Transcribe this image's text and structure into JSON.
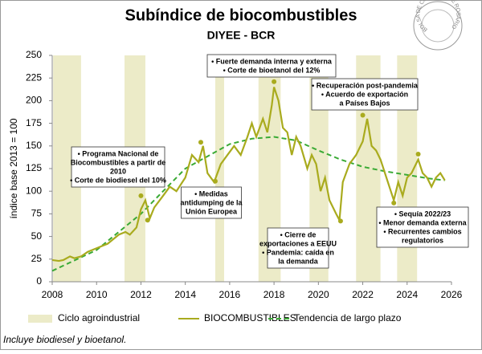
{
  "chart_data": {
    "type": "line",
    "title": "Subíndice de biocombustibles",
    "subtitle": "DIYEE - BCR",
    "y_label": "índice base 2013 = 100",
    "footnote": "Incluye biodiesel y bioetanol.",
    "logo_text": "BOLSA DE COMERCIO DE ROSARIO",
    "xlim": [
      2008,
      2026
    ],
    "xticks": [
      2008,
      2010,
      2012,
      2014,
      2016,
      2018,
      2020,
      2022,
      2024,
      2026
    ],
    "ylim": [
      0,
      250
    ],
    "yticks": [
      0,
      25,
      50,
      75,
      100,
      125,
      150,
      175,
      200,
      225,
      250
    ],
    "bands": {
      "name": "Ciclo agroindustrial",
      "color": "#ecebc8",
      "ranges": [
        [
          2008.04,
          2009.3
        ],
        [
          2011.26,
          2012.2
        ],
        [
          2015.35,
          2015.75
        ],
        [
          2017.3,
          2018.3
        ],
        [
          2019.6,
          2020.45
        ],
        [
          2021.7,
          2022.8
        ],
        [
          2023.55,
          2024.45
        ]
      ]
    },
    "series": [
      {
        "name": "BIOCOMBUSTIBLES",
        "color": "#a9ab1e",
        "style": "solid",
        "x": [
          2008.0,
          2008.3,
          2008.5,
          2008.8,
          2009.0,
          2009.3,
          2009.6,
          2010.0,
          2010.5,
          2010.8,
          2011.0,
          2011.3,
          2011.5,
          2011.8,
          2012.0,
          2012.2,
          2012.4,
          2012.6,
          2013.0,
          2013.3,
          2013.6,
          2014.0,
          2014.3,
          2014.6,
          2014.8,
          2015.0,
          2015.3,
          2015.6,
          2015.9,
          2016.2,
          2016.5,
          2016.8,
          2017.0,
          2017.2,
          2017.5,
          2017.7,
          2017.9,
          2018.0,
          2018.2,
          2018.4,
          2018.6,
          2018.8,
          2019.0,
          2019.2,
          2019.5,
          2019.7,
          2019.9,
          2020.1,
          2020.3,
          2020.5,
          2020.8,
          2020.95,
          2021.1,
          2021.4,
          2021.7,
          2022.0,
          2022.2,
          2022.4,
          2022.6,
          2022.8,
          2023.0,
          2023.2,
          2023.4,
          2023.6,
          2023.8,
          2024.0,
          2024.2,
          2024.5,
          2024.7,
          2024.9,
          2025.1,
          2025.3,
          2025.5,
          2025.7
        ],
        "values": [
          24,
          23,
          24,
          28,
          26,
          28,
          33,
          37,
          42,
          48,
          52,
          55,
          52,
          60,
          80,
          90,
          70,
          82,
          95,
          105,
          100,
          115,
          140,
          132,
          150,
          120,
          110,
          130,
          140,
          150,
          140,
          160,
          175,
          160,
          180,
          165,
          195,
          215,
          200,
          170,
          165,
          140,
          160,
          150,
          125,
          140,
          130,
          100,
          115,
          90,
          75,
          68,
          110,
          130,
          140,
          155,
          180,
          150,
          145,
          135,
          120,
          105,
          90,
          110,
          95,
          115,
          120,
          135,
          120,
          115,
          105,
          115,
          120,
          112
        ]
      },
      {
        "name": "Tendencia de largo plazo",
        "color": "#3aaa35",
        "style": "dashed",
        "x": [
          2008,
          2010,
          2012,
          2014,
          2016,
          2017,
          2018,
          2019,
          2020,
          2021,
          2022,
          2023,
          2024,
          2025,
          2025.7
        ],
        "values": [
          12,
          35,
          75,
          125,
          152,
          158,
          160,
          156,
          145,
          135,
          127,
          122,
          118,
          114,
          112
        ]
      }
    ],
    "annotations": [
      {
        "lines": [
          "• Programa Nacional de",
          "Biocombustibles a partir de",
          "2010",
          "• Corte de biodiesel del 10%"
        ],
        "points": [
          [
            2012.0,
            95
          ],
          [
            2012.3,
            68
          ]
        ]
      },
      {
        "lines": [
          "• Medidas",
          "antidumping de la",
          "Unión Europea"
        ],
        "points": [
          [
            2014.7,
            154
          ],
          [
            2015.35,
            111
          ]
        ]
      },
      {
        "lines": [
          "• Fuerte demanda interna y externa",
          "• Corte de bioetanol del 12%"
        ],
        "points": [
          [
            2018.0,
            221
          ]
        ]
      },
      {
        "lines": [
          "• Recuperación post-pandemia",
          "• Acuerdo de exportación",
          "a Países Bajos"
        ],
        "points": [
          [
            2022.0,
            184
          ]
        ]
      },
      {
        "lines": [
          "• Cierre de",
          "exportaciones a EEUU",
          "• Pandemia: caída en",
          "la demanda"
        ],
        "points": [
          [
            2021.0,
            67
          ]
        ]
      },
      {
        "lines": [
          "• Sequía 2022/23",
          "• Menor demanda externa",
          "• Recurrentes cambios",
          "regulatorios"
        ],
        "points": [
          [
            2023.4,
            87
          ],
          [
            2024.5,
            141
          ]
        ]
      }
    ]
  }
}
